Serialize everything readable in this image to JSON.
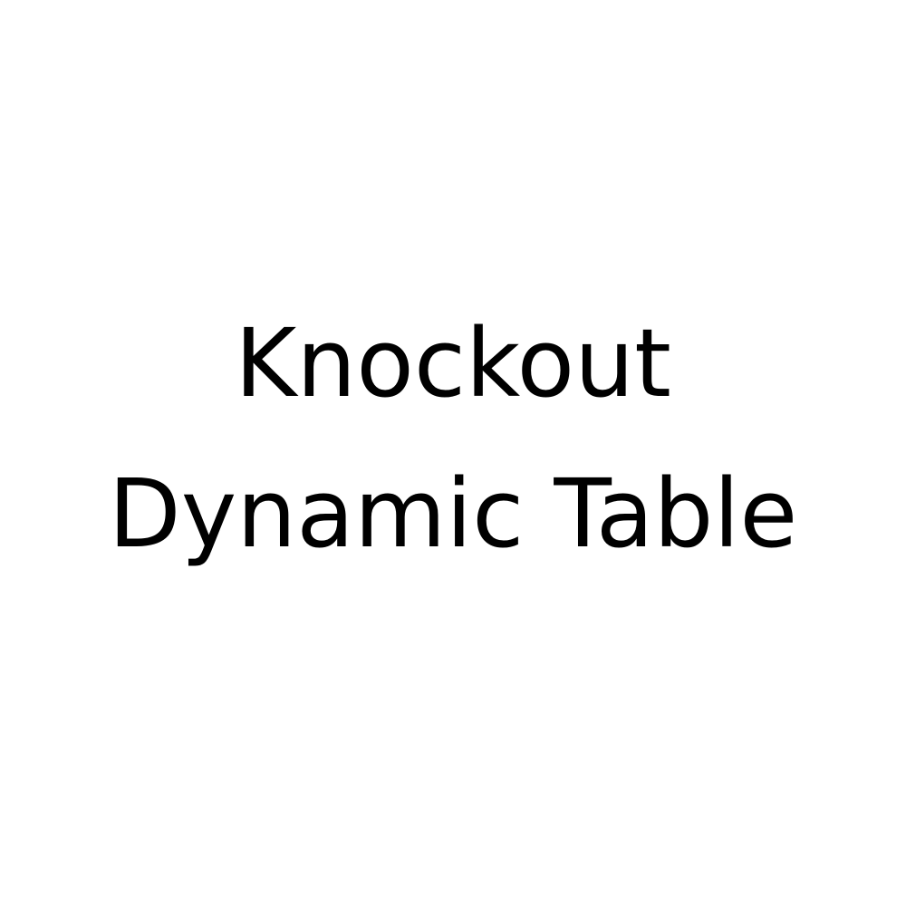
{
  "title": {
    "line1": "Knockout",
    "line2": "Dynamic Table"
  },
  "colors": {
    "background": "#ffffff",
    "text": "#000000"
  }
}
